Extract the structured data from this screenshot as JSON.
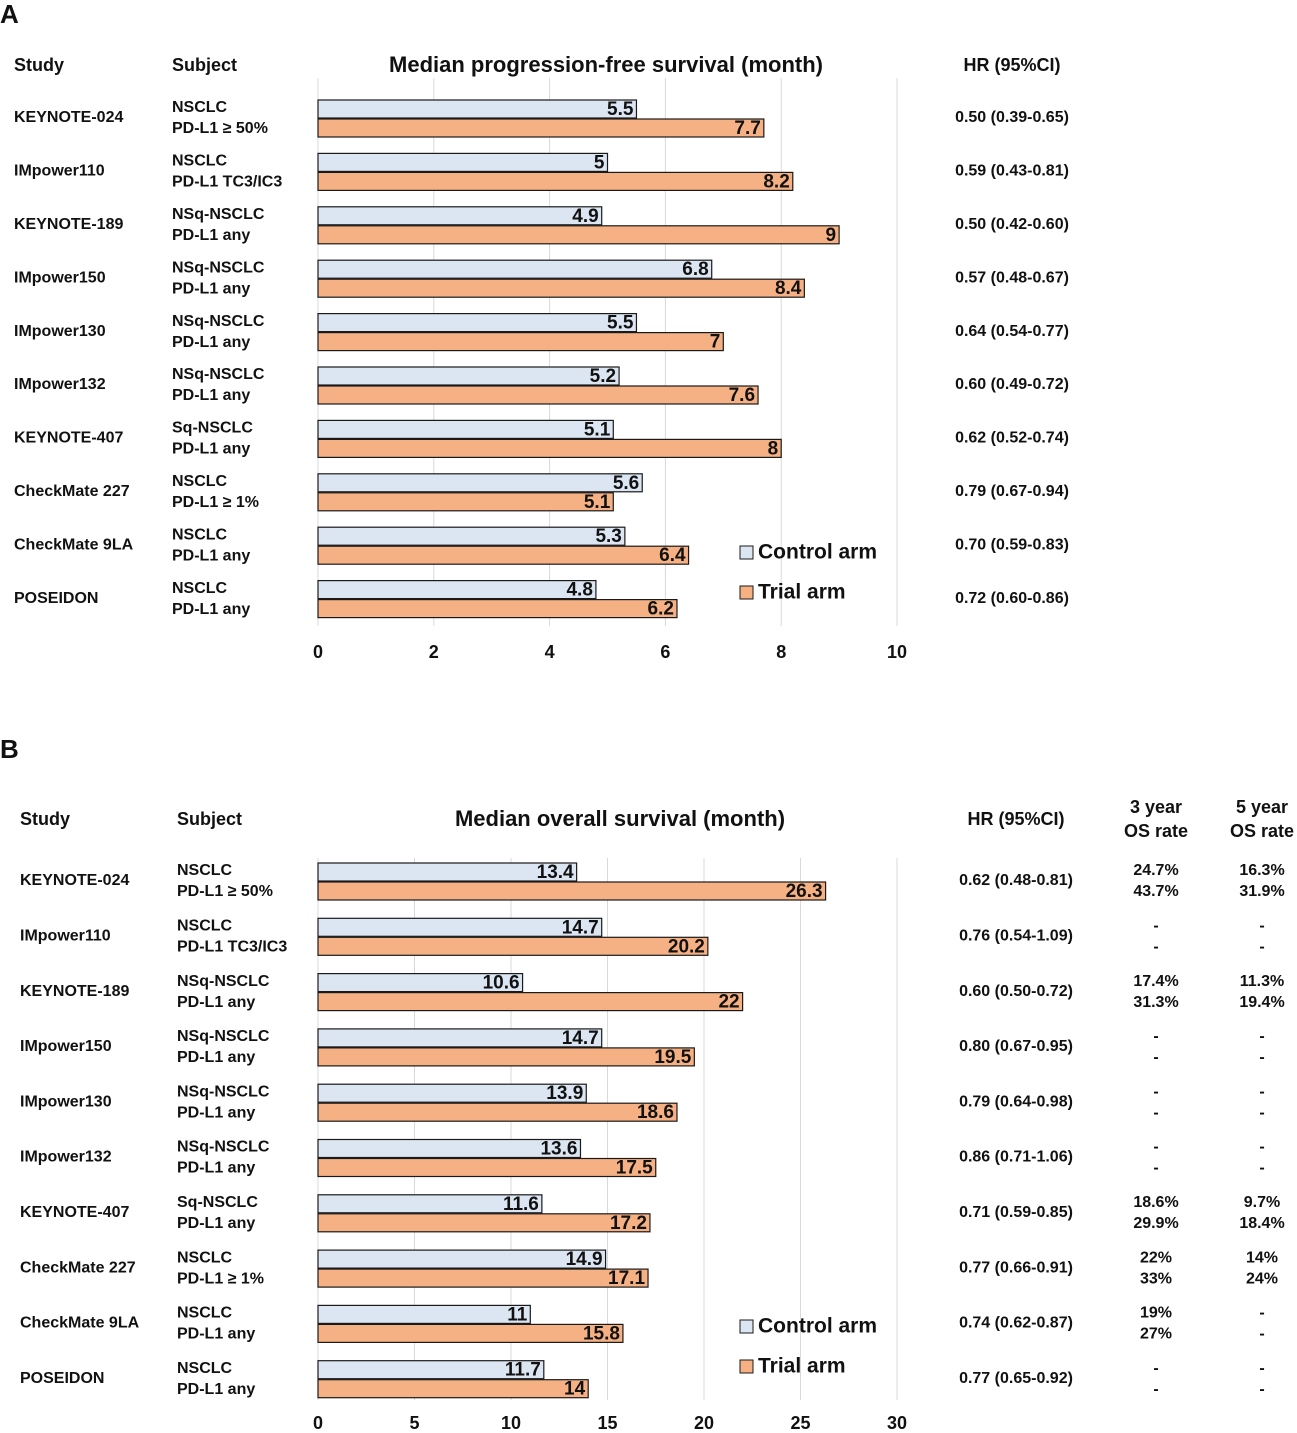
{
  "colors": {
    "control": "#dce6f2",
    "trial": "#f5b183",
    "grid": "#d9d9d9",
    "text": "#111111"
  },
  "chart_data": [
    {
      "panel": "A",
      "type": "bar",
      "orientation": "horizontal",
      "title": "Median progression-free survival (month)",
      "headers": {
        "study": "Study",
        "subject": "Subject",
        "hr": "HR (95%CI)"
      },
      "xlim": [
        0,
        10
      ],
      "ticks": [
        0,
        2,
        4,
        6,
        8,
        10
      ],
      "legend": [
        "Control arm",
        "Trial arm"
      ],
      "studies": [
        "KEYNOTE-024",
        "IMpower110",
        "KEYNOTE-189",
        "IMpower150",
        "IMpower130",
        "IMpower132",
        "KEYNOTE-407",
        "CheckMate 227",
        "CheckMate 9LA",
        "POSEIDON"
      ],
      "subject1": [
        "NSCLC",
        "NSCLC",
        "NSq-NSCLC",
        "NSq-NSCLC",
        "NSq-NSCLC",
        "NSq-NSCLC",
        "Sq-NSCLC",
        "NSCLC",
        "NSCLC",
        "NSCLC"
      ],
      "subject2": [
        "PD-L1 ≥ 50%",
        "PD-L1 TC3/IC3",
        "PD-L1 any",
        "PD-L1 any",
        "PD-L1 any",
        "PD-L1 any",
        "PD-L1 any",
        "PD-L1 ≥ 1%",
        "PD-L1 any",
        "PD-L1 any"
      ],
      "series": [
        {
          "name": "Control arm",
          "values": [
            5.5,
            5,
            4.9,
            6.8,
            5.5,
            5.2,
            5.1,
            5.6,
            5.3,
            4.8
          ]
        },
        {
          "name": "Trial arm",
          "values": [
            7.7,
            8.2,
            9,
            8.4,
            7,
            7.6,
            8,
            5.1,
            6.4,
            6.2
          ]
        }
      ],
      "hr": [
        "0.50 (0.39-0.65)",
        "0.59 (0.43-0.81)",
        "0.50 (0.42-0.60)",
        "0.57 (0.48-0.67)",
        "0.64 (0.54-0.77)",
        "0.60 (0.49-0.72)",
        "0.62 (0.52-0.74)",
        "0.79 (0.67-0.94)",
        "0.70 (0.59-0.83)",
        "0.72 (0.60-0.86)"
      ]
    },
    {
      "panel": "B",
      "type": "bar",
      "orientation": "horizontal",
      "title": "Median overall survival (month)",
      "headers": {
        "study": "Study",
        "subject": "Subject",
        "hr": "HR (95%CI)",
        "os3_a": "3 year",
        "os3_b": "OS rate",
        "os5_a": "5 year",
        "os5_b": "OS rate"
      },
      "xlim": [
        0,
        30
      ],
      "ticks": [
        0,
        5,
        10,
        15,
        20,
        25,
        30
      ],
      "legend": [
        "Control arm",
        "Trial arm"
      ],
      "studies": [
        "KEYNOTE-024",
        "IMpower110",
        "KEYNOTE-189",
        "IMpower150",
        "IMpower130",
        "IMpower132",
        "KEYNOTE-407",
        "CheckMate 227",
        "CheckMate 9LA",
        "POSEIDON"
      ],
      "subject1": [
        "NSCLC",
        "NSCLC",
        "NSq-NSCLC",
        "NSq-NSCLC",
        "NSq-NSCLC",
        "NSq-NSCLC",
        "Sq-NSCLC",
        "NSCLC",
        "NSCLC",
        "NSCLC"
      ],
      "subject2": [
        "PD-L1 ≥ 50%",
        "PD-L1 TC3/IC3",
        "PD-L1 any",
        "PD-L1 any",
        "PD-L1 any",
        "PD-L1 any",
        "PD-L1 any",
        "PD-L1 ≥ 1%",
        "PD-L1 any",
        "PD-L1 any"
      ],
      "series": [
        {
          "name": "Control arm",
          "values": [
            13.4,
            14.7,
            10.6,
            14.7,
            13.9,
            13.6,
            11.6,
            14.9,
            11,
            11.7
          ]
        },
        {
          "name": "Trial arm",
          "values": [
            26.3,
            20.2,
            22,
            19.5,
            18.6,
            17.5,
            17.2,
            17.1,
            15.8,
            14
          ]
        }
      ],
      "hr": [
        "0.62 (0.48-0.81)",
        "0.76 (0.54-1.09)",
        "0.60 (0.50-0.72)",
        "0.80 (0.67-0.95)",
        "0.79 (0.64-0.98)",
        "0.86 (0.71-1.06)",
        "0.71 (0.59-0.85)",
        "0.77 (0.66-0.91)",
        "0.74 (0.62-0.87)",
        "0.77 (0.65-0.92)"
      ],
      "os3_control": [
        "24.7%",
        "-",
        "17.4%",
        "-",
        "-",
        "-",
        "18.6%",
        "22%",
        "19%",
        "-"
      ],
      "os3_trial": [
        "43.7%",
        "-",
        "31.3%",
        "-",
        "-",
        "-",
        "29.9%",
        "33%",
        "27%",
        "-"
      ],
      "os5_control": [
        "16.3%",
        "-",
        "11.3%",
        "-",
        "-",
        "-",
        "9.7%",
        "14%",
        "-",
        "-"
      ],
      "os5_trial": [
        "31.9%",
        "-",
        "19.4%",
        "-",
        "-",
        "-",
        "18.4%",
        "24%",
        "-",
        "-"
      ]
    }
  ]
}
